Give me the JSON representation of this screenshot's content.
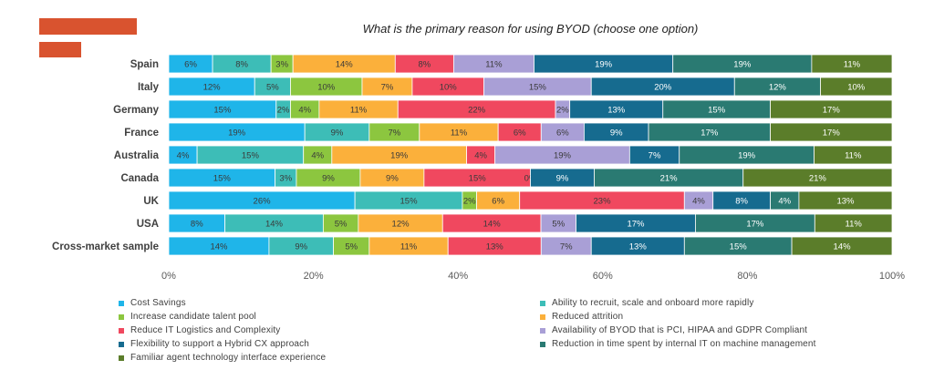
{
  "chart_data": {
    "type": "bar",
    "orientation": "horizontal",
    "stacked": true,
    "percent_stacked": true,
    "title": "What is the primary reason for using BYOD (choose one option)",
    "categories": [
      "Spain",
      "Italy",
      "Germany",
      "France",
      "Australia",
      "Canada",
      "UK",
      "USA",
      "Cross-market sample"
    ],
    "series": [
      {
        "name": "Cost Savings",
        "color": "#1fb5e9",
        "values": [
          6,
          12,
          15,
          19,
          4,
          15,
          26,
          8,
          14
        ]
      },
      {
        "name": "Ability to recruit, scale and onboard more rapidly",
        "color": "#3dbdb7",
        "values": [
          8,
          5,
          2,
          9,
          15,
          3,
          15,
          14,
          9
        ]
      },
      {
        "name": "Increase candidate talent pool",
        "color": "#8cc63f",
        "values": [
          3,
          10,
          4,
          7,
          4,
          9,
          2,
          5,
          5
        ]
      },
      {
        "name": "Reduced attrition",
        "color": "#fbb03b",
        "values": [
          14,
          7,
          11,
          11,
          19,
          9,
          6,
          12,
          11
        ]
      },
      {
        "name": "Reduce IT Logistics and Complexity",
        "color": "#f0485f",
        "values": [
          8,
          10,
          22,
          6,
          4,
          15,
          23,
          14,
          13
        ]
      },
      {
        "name": "Availability of BYOD that is PCI, HIPAA and GDPR Compliant",
        "color": "#a99fd6",
        "values": [
          11,
          15,
          2,
          6,
          19,
          0,
          4,
          5,
          7
        ]
      },
      {
        "name": "Flexibility to support a Hybrid CX approach",
        "color": "#166b8f",
        "values": [
          19,
          20,
          13,
          9,
          7,
          9,
          8,
          17,
          13
        ]
      },
      {
        "name": "Reduction in time spent by internal IT on machine management",
        "color": "#2a7a72",
        "values": [
          19,
          12,
          15,
          17,
          19,
          21,
          4,
          17,
          15
        ]
      },
      {
        "name": "Familiar agent technology interface experience",
        "color": "#5b7d2a",
        "values": [
          11,
          10,
          17,
          17,
          11,
          21,
          13,
          11,
          14
        ]
      }
    ],
    "xlim": [
      0,
      100
    ],
    "xticks": [
      "0%",
      "20%",
      "40%",
      "60%",
      "80%",
      "100%"
    ],
    "data_label_suffix": "%",
    "grid": false,
    "legend_position": "bottom"
  },
  "brand": {
    "accent_color": "#d9532f"
  }
}
